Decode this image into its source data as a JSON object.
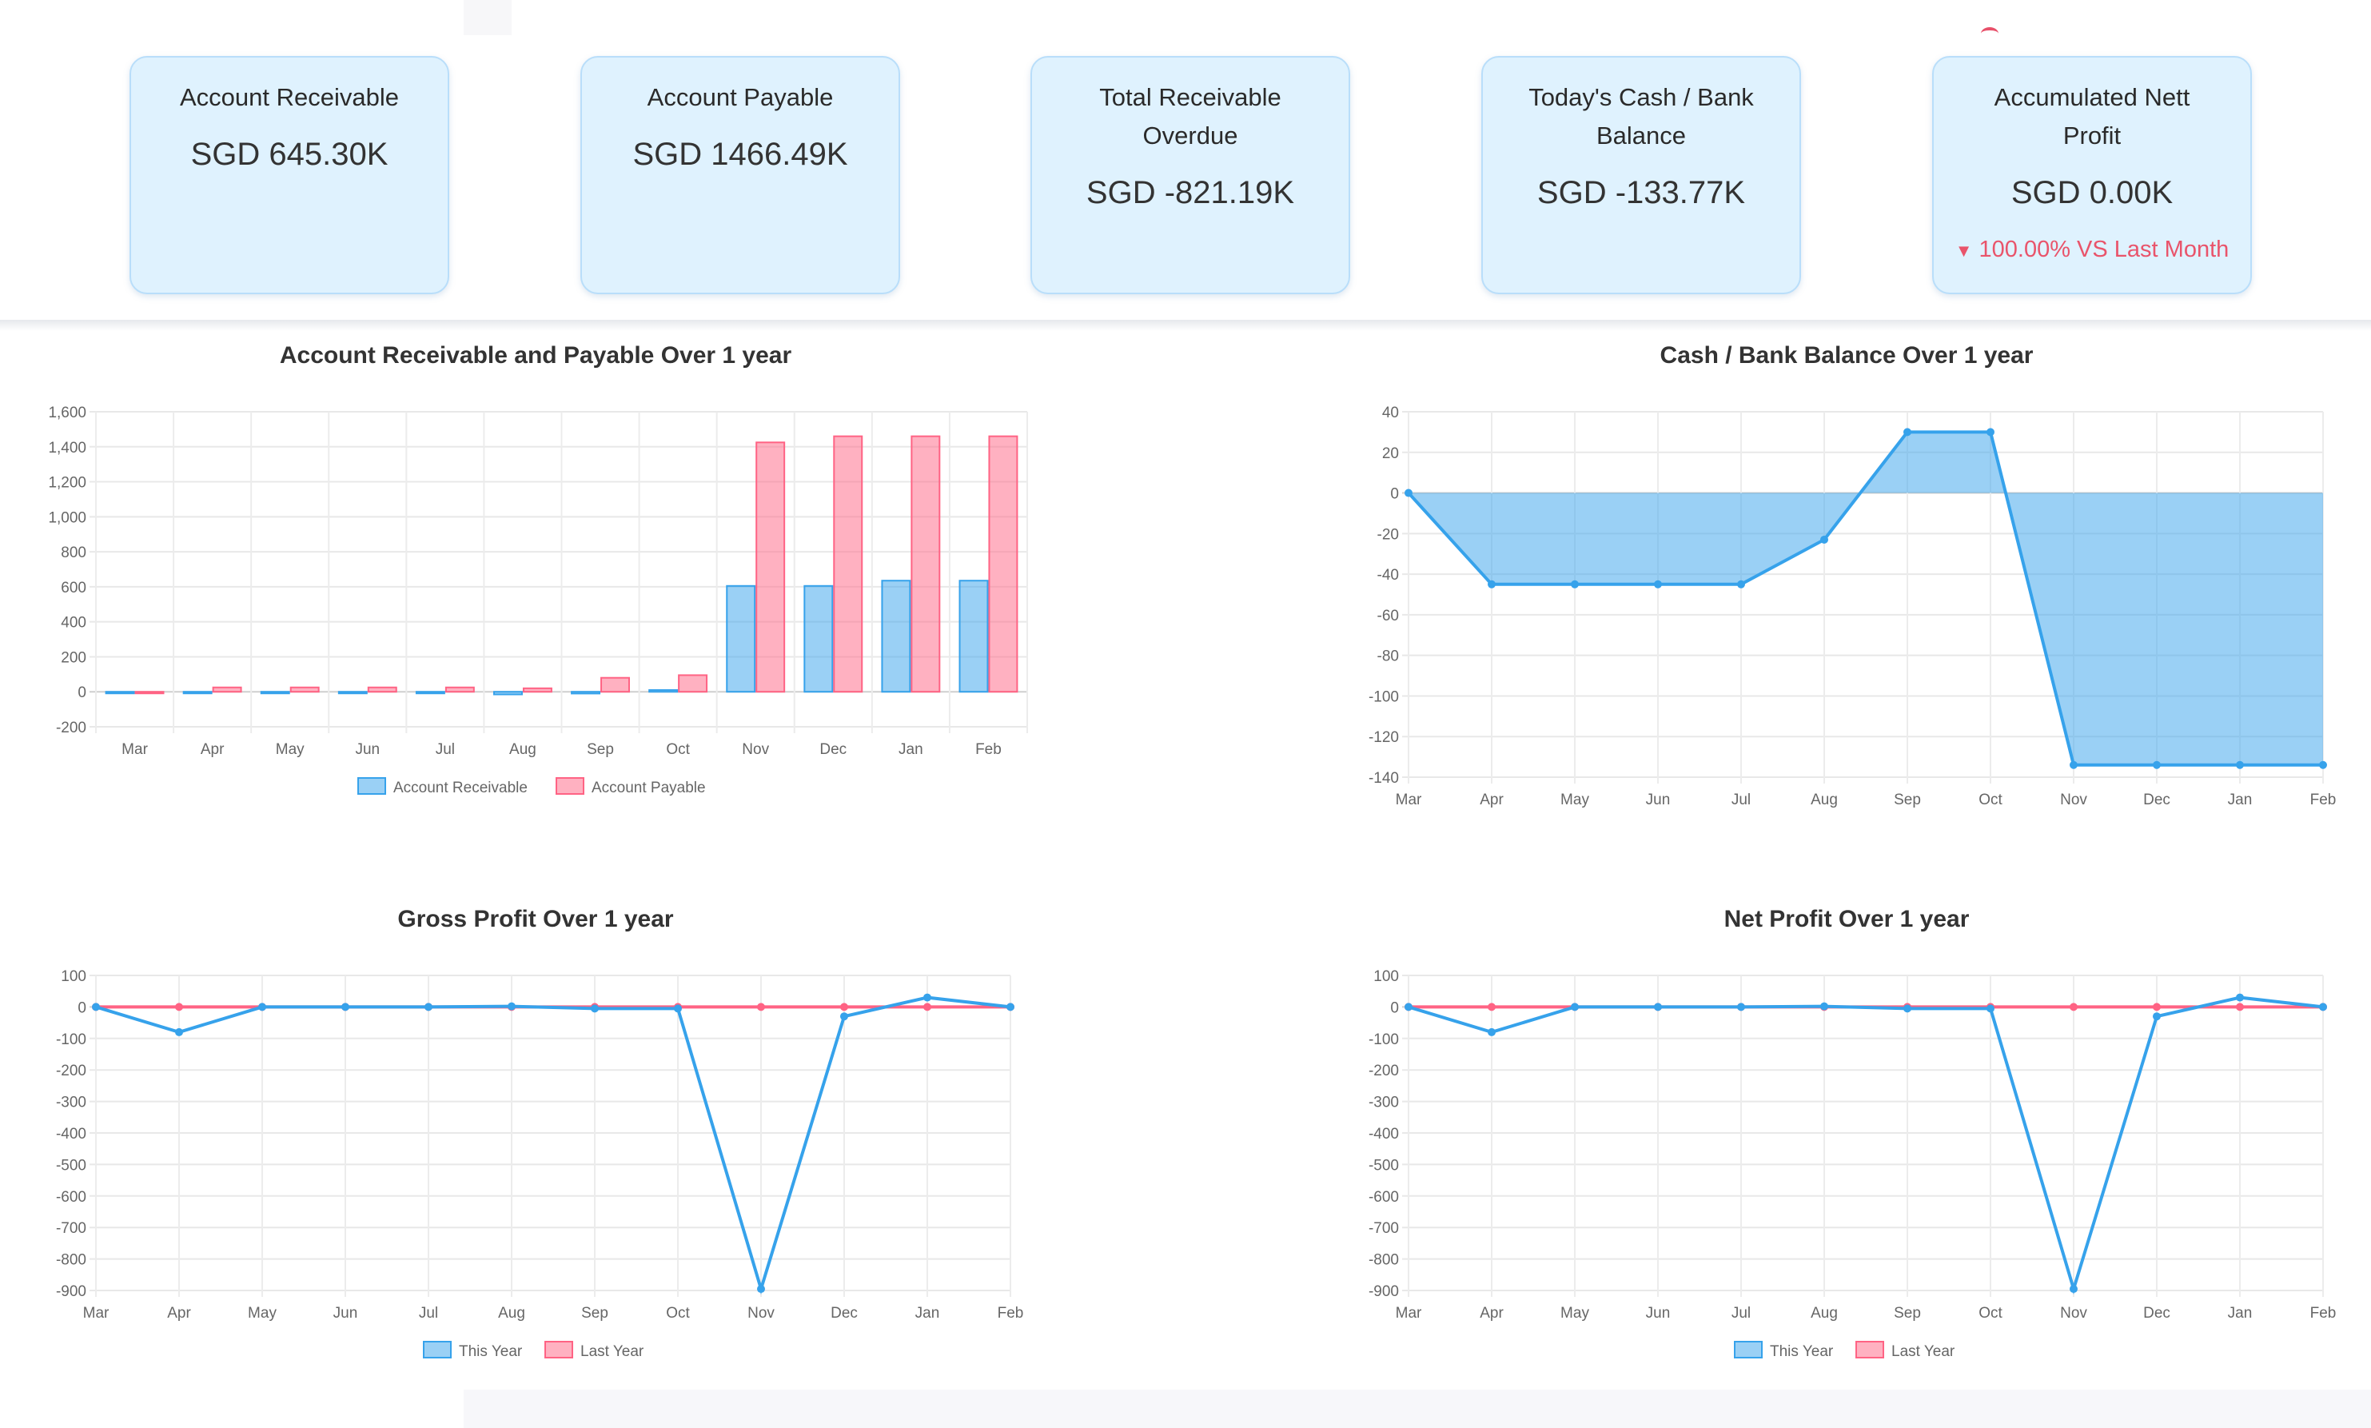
{
  "cards": [
    {
      "title": "Account Receivable",
      "value": "SGD 645.30K"
    },
    {
      "title": "Account Payable",
      "value": "SGD 1466.49K"
    },
    {
      "title": "Total Receivable Overdue",
      "value": "SGD -821.19K"
    },
    {
      "title": "Today's Cash / Bank Balance",
      "value": "SGD -133.77K"
    },
    {
      "title": "Accumulated Nett Profit",
      "value": "SGD 0.00K",
      "change": "100.00% VS Last Month",
      "change_color": "#e9546b"
    }
  ],
  "colors": {
    "blue": "#36a2eb",
    "pink": "#ff6384"
  },
  "chart_data": [
    {
      "id": "ar_ap",
      "type": "bar",
      "title": "Account Receivable and Payable Over 1 year",
      "categories": [
        "Mar",
        "Apr",
        "May",
        "Jun",
        "Jul",
        "Aug",
        "Sep",
        "Oct",
        "Nov",
        "Dec",
        "Jan",
        "Feb"
      ],
      "ylim": [
        -200,
        1600
      ],
      "yticks": [
        "1,600",
        "1,400",
        "1,200",
        "1,000",
        "800",
        "600",
        "400",
        "200",
        "0",
        "-200"
      ],
      "series": [
        {
          "name": "Account Receivable",
          "values": [
            -5,
            0,
            -5,
            -5,
            0,
            -15,
            -10,
            10,
            605,
            605,
            635,
            635
          ]
        },
        {
          "name": "Account Payable",
          "values": [
            -5,
            25,
            25,
            25,
            25,
            20,
            80,
            95,
            1425,
            1460,
            1460,
            1460
          ]
        }
      ],
      "legend": "bottom"
    },
    {
      "id": "cash",
      "type": "area",
      "title": "Cash / Bank Balance Over 1 year",
      "categories": [
        "Mar",
        "Apr",
        "May",
        "Jun",
        "Jul",
        "Aug",
        "Sep",
        "Oct",
        "Nov",
        "Dec",
        "Jan",
        "Feb"
      ],
      "ylim": [
        -140,
        40
      ],
      "yticks": [
        "40",
        "20",
        "0",
        "-20",
        "-40",
        "-60",
        "-80",
        "-100",
        "-120",
        "-140"
      ],
      "series": [
        {
          "name": "Cash / Bank Balance",
          "values": [
            0,
            -45,
            -45,
            -45,
            -45,
            -23,
            30,
            30,
            -134,
            -134,
            -134,
            -134
          ]
        }
      ]
    },
    {
      "id": "gross",
      "type": "line",
      "title": "Gross Profit Over 1 year",
      "categories": [
        "Mar",
        "Apr",
        "May",
        "Jun",
        "Jul",
        "Aug",
        "Sep",
        "Oct",
        "Nov",
        "Dec",
        "Jan",
        "Feb"
      ],
      "ylim": [
        -900,
        100
      ],
      "yticks": [
        "100",
        "0",
        "-100",
        "-200",
        "-300",
        "-400",
        "-500",
        "-600",
        "-700",
        "-800",
        "-900"
      ],
      "series": [
        {
          "name": "This Year",
          "values": [
            0,
            -80,
            0,
            0,
            0,
            2,
            -5,
            -5,
            -895,
            -30,
            30,
            0
          ]
        },
        {
          "name": "Last Year",
          "values": [
            0,
            0,
            0,
            0,
            0,
            0,
            0,
            0,
            0,
            0,
            0,
            0
          ]
        }
      ],
      "legend": "bottom"
    },
    {
      "id": "net",
      "type": "line",
      "title": "Net Profit Over 1 year",
      "categories": [
        "Mar",
        "Apr",
        "May",
        "Jun",
        "Jul",
        "Aug",
        "Sep",
        "Oct",
        "Nov",
        "Dec",
        "Jan",
        "Feb"
      ],
      "ylim": [
        -900,
        100
      ],
      "yticks": [
        "100",
        "0",
        "-100",
        "-200",
        "-300",
        "-400",
        "-500",
        "-600",
        "-700",
        "-800",
        "-900"
      ],
      "series": [
        {
          "name": "This Year",
          "values": [
            0,
            -80,
            0,
            0,
            0,
            2,
            -5,
            -5,
            -895,
            -30,
            30,
            0
          ]
        },
        {
          "name": "Last Year",
          "values": [
            0,
            0,
            0,
            0,
            0,
            0,
            0,
            0,
            0,
            0,
            0,
            0
          ]
        }
      ],
      "legend": "bottom"
    }
  ]
}
